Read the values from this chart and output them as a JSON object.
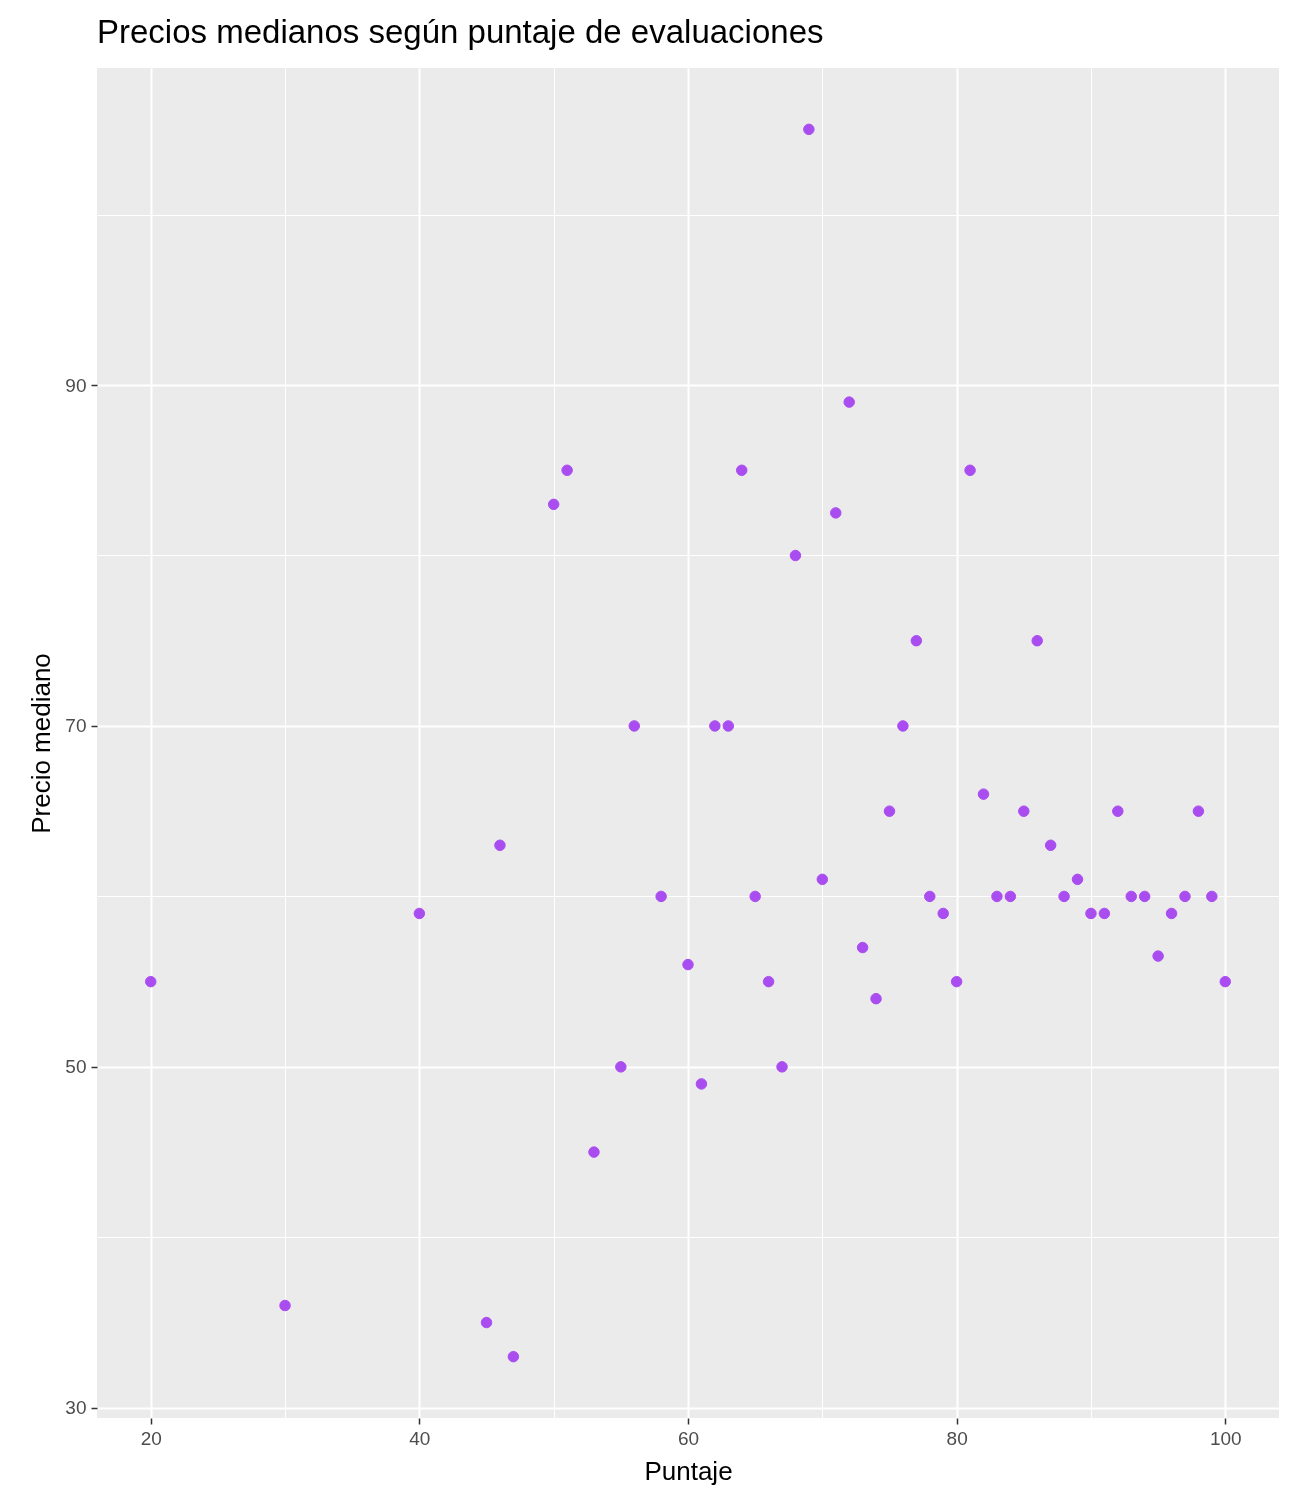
{
  "chart_data": {
    "type": "scatter",
    "title": "Precios medianos según puntaje de evaluaciones",
    "xlabel": "Puntaje",
    "ylabel": "Precio mediano",
    "x": [
      20,
      30,
      40,
      45,
      46,
      47,
      50,
      51,
      53,
      55,
      56,
      58,
      60,
      61,
      62,
      63,
      64,
      65,
      66,
      67,
      68,
      69,
      70,
      71,
      72,
      73,
      74,
      75,
      76,
      77,
      78,
      79,
      80,
      81,
      82,
      83,
      84,
      85,
      86,
      87,
      88,
      89,
      90,
      91,
      92,
      93,
      94,
      95,
      96,
      97,
      98,
      99,
      100
    ],
    "series": [
      {
        "color": "#aa4df0",
        "values": [
          55,
          36,
          59,
          35,
          63,
          33,
          83,
          85,
          45,
          50,
          70,
          60,
          56,
          49,
          70,
          70,
          85,
          60,
          55,
          50,
          80,
          105,
          61,
          82.5,
          89,
          57,
          54,
          65,
          70,
          75,
          60,
          59,
          55,
          85,
          66,
          60,
          60,
          65,
          75,
          63,
          60,
          61,
          59,
          59,
          65,
          60,
          60,
          56.5,
          59,
          60,
          65,
          60,
          55
        ]
      }
    ],
    "xlim": [
      16,
      104
    ],
    "ylim": [
      29.4,
      108.6
    ],
    "xticks": [
      20,
      {
        "value": 30,
        "label": null
      },
      40,
      {
        "value": 50,
        "label": null
      },
      60,
      {
        "value": 70,
        "label": null
      },
      80,
      {
        "value": 90,
        "label": null
      },
      100
    ],
    "yticks": [
      30,
      {
        "value": 40,
        "label": null
      },
      50,
      {
        "value": 60,
        "label": null
      },
      70,
      {
        "value": 80,
        "label": null
      },
      90,
      {
        "value": 100,
        "label": null
      }
    ],
    "grid": true,
    "marker": "circle"
  }
}
